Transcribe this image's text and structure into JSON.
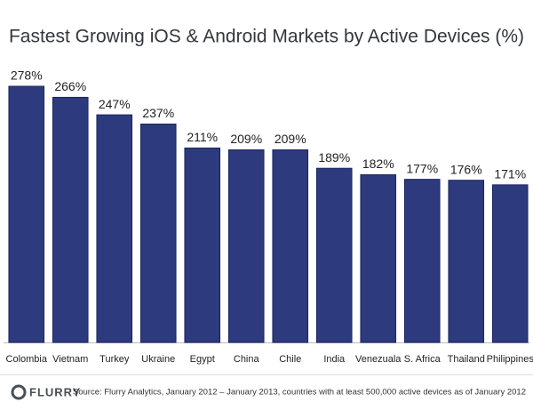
{
  "chart_data": {
    "type": "bar",
    "title": "Fastest Growing iOS & Android Markets by Active Devices (%)",
    "categories": [
      "Colombia",
      "Vietnam",
      "Turkey",
      "Ukraine",
      "Egypt",
      "China",
      "Chile",
      "India",
      "Venezuala",
      "S. Africa",
      "Thailand",
      "Philippines"
    ],
    "values": [
      278,
      266,
      247,
      237,
      211,
      209,
      209,
      189,
      182,
      177,
      176,
      171
    ],
    "value_labels": [
      "278%",
      "266%",
      "247%",
      "237%",
      "211%",
      "209%",
      "209%",
      "189%",
      "182%",
      "177%",
      "176%",
      "171%"
    ],
    "color": "#2e3a7e",
    "source": "Source: Flurry Analytics, January 2012 – January 2013, countries with at least 500,000 active devices as of January 2012",
    "logo": "FLURRY"
  }
}
